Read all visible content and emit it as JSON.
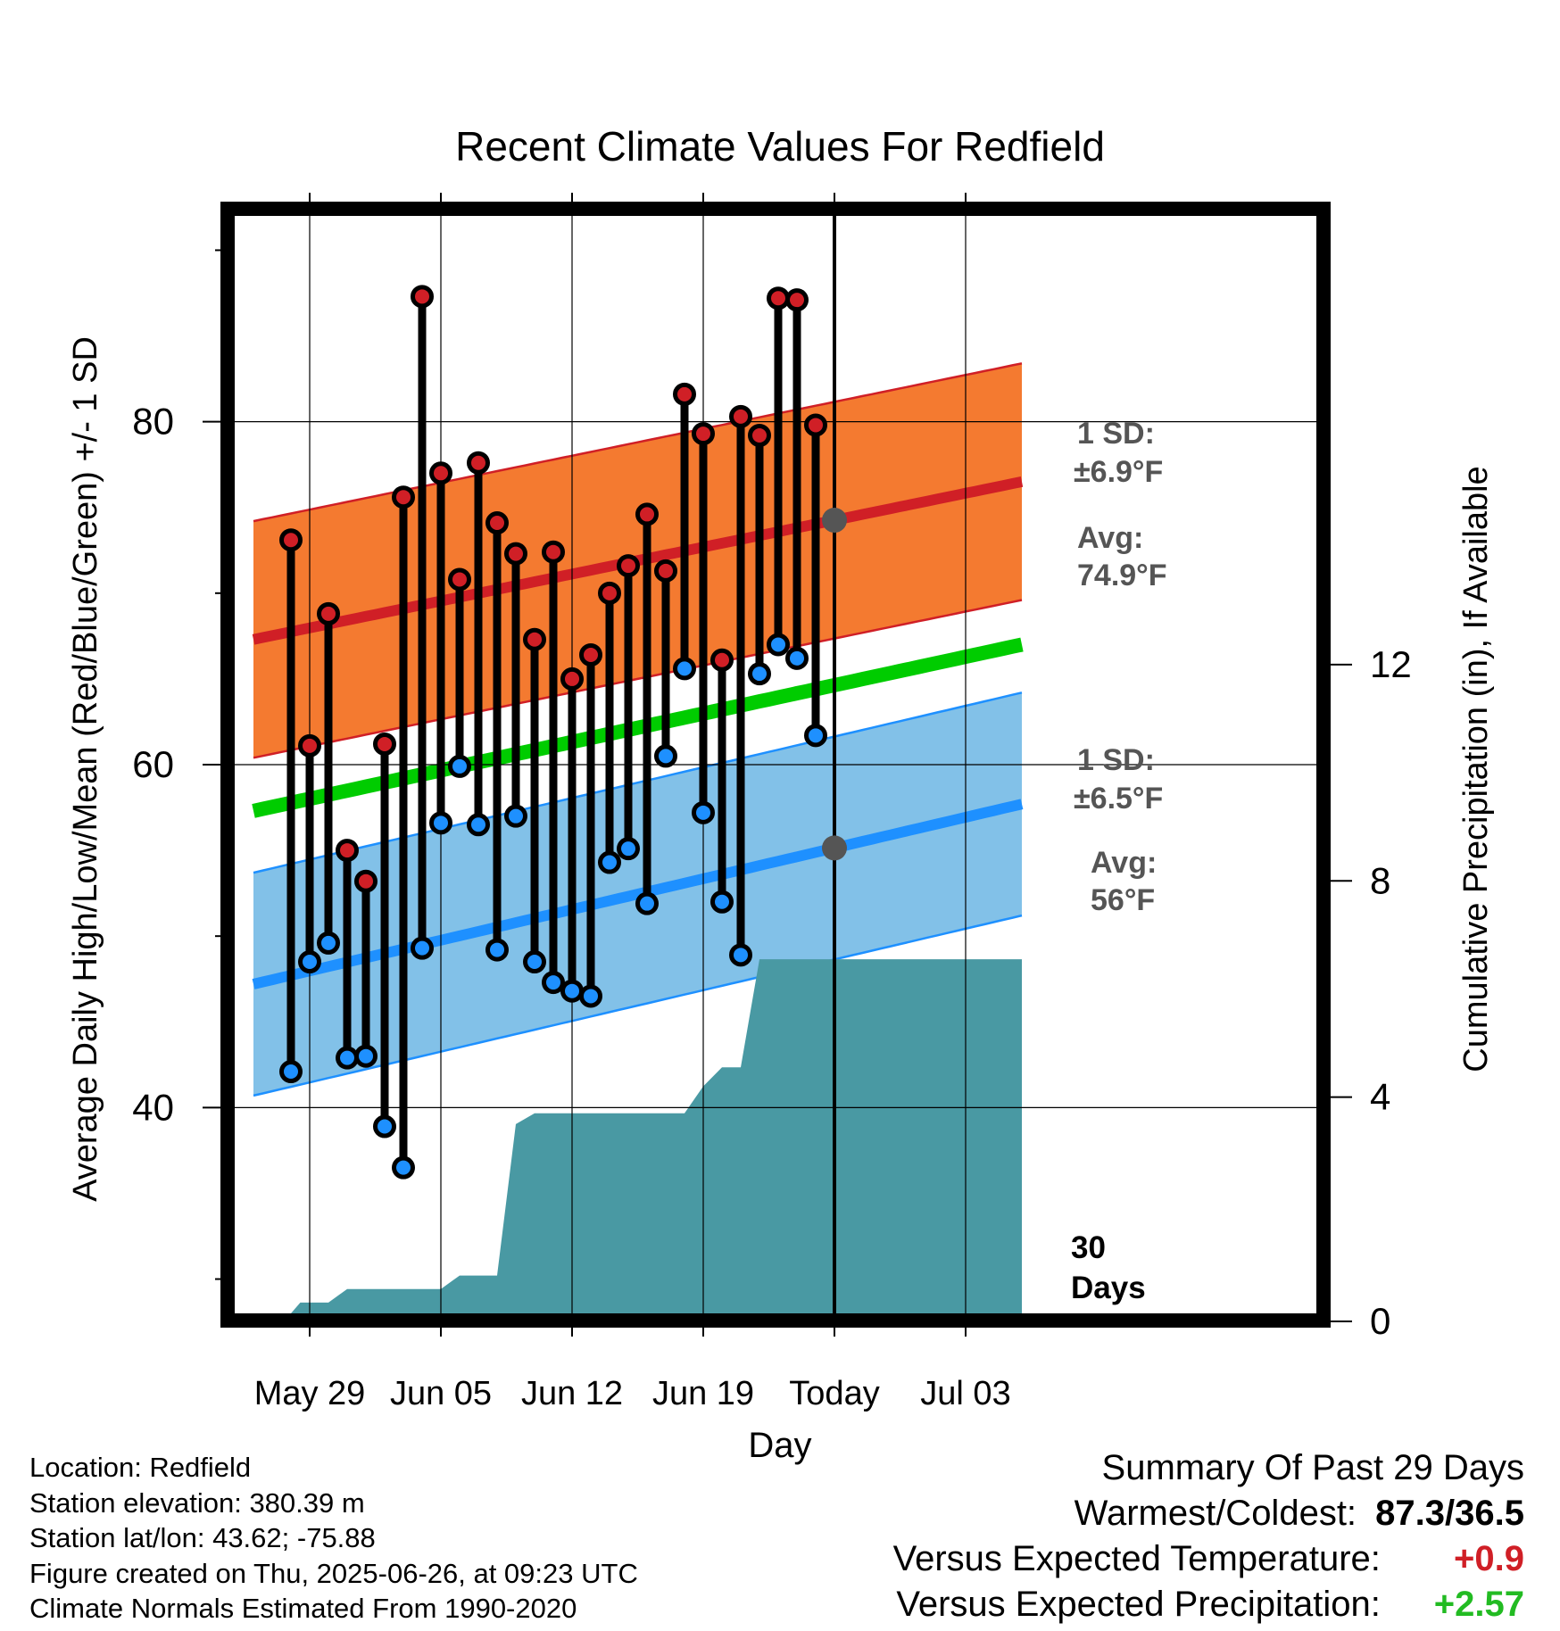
{
  "chart_data": {
    "type": "line",
    "title": "Recent Climate Values For Redfield",
    "xlabel": "Day",
    "ylabel": "Average Daily High/Low/Mean (Red/Blue/Green) +/- 1 SD",
    "y2label": "Cumulative Precipitation (in), If Available",
    "xticks": [
      {
        "day": 4,
        "label": "May 29"
      },
      {
        "day": 11,
        "label": "Jun 05"
      },
      {
        "day": 18,
        "label": "Jun 12"
      },
      {
        "day": 25,
        "label": "Jun 19"
      },
      {
        "day": 32,
        "label": "Today"
      },
      {
        "day": 39,
        "label": "Jul 03"
      }
    ],
    "ylim": [
      28,
      92
    ],
    "yticks": [
      40,
      60,
      80
    ],
    "y2lim": [
      0,
      20.3
    ],
    "y2ticks": [
      0,
      4,
      8,
      12
    ],
    "xlim": [
      1,
      42
    ],
    "today_day": 32,
    "grid": true,
    "normals": {
      "high_mean": {
        "start": 67.3,
        "end": 76.5
      },
      "high_sd": 6.9,
      "low_mean": {
        "start": 47.2,
        "end": 57.7
      },
      "low_sd": 6.5,
      "mean": {
        "start": 57.3,
        "end": 67.0
      }
    },
    "observations": [
      {
        "day": 3,
        "high": 73.1,
        "low": 42.1
      },
      {
        "day": 4,
        "high": 61.1,
        "low": 48.5
      },
      {
        "day": 5,
        "high": 68.8,
        "low": 49.6
      },
      {
        "day": 6,
        "high": 55.0,
        "low": 42.9
      },
      {
        "day": 7,
        "high": 53.2,
        "low": 43.0
      },
      {
        "day": 8,
        "high": 61.2,
        "low": 38.9
      },
      {
        "day": 9,
        "high": 75.6,
        "low": 36.5
      },
      {
        "day": 10,
        "high": 87.3,
        "low": 49.3
      },
      {
        "day": 11,
        "high": 77.0,
        "low": 56.6
      },
      {
        "day": 12,
        "high": 70.8,
        "low": 59.9
      },
      {
        "day": 13,
        "high": 77.6,
        "low": 56.5
      },
      {
        "day": 14,
        "high": 74.1,
        "low": 49.2
      },
      {
        "day": 15,
        "high": 72.3,
        "low": 57.0
      },
      {
        "day": 16,
        "high": 67.3,
        "low": 48.5
      },
      {
        "day": 17,
        "high": 72.4,
        "low": 47.3
      },
      {
        "day": 18,
        "high": 65.0,
        "low": 46.8
      },
      {
        "day": 19,
        "high": 66.4,
        "low": 46.5
      },
      {
        "day": 20,
        "high": 70.0,
        "low": 54.3
      },
      {
        "day": 21,
        "high": 71.6,
        "low": 55.1
      },
      {
        "day": 22,
        "high": 74.6,
        "low": 51.9
      },
      {
        "day": 23,
        "high": 71.3,
        "low": 60.5
      },
      {
        "day": 24,
        "high": 81.6,
        "low": 65.6
      },
      {
        "day": 25,
        "high": 79.3,
        "low": 57.2
      },
      {
        "day": 26,
        "high": 66.1,
        "low": 52.0
      },
      {
        "day": 27,
        "high": 80.3,
        "low": 48.9
      },
      {
        "day": 28,
        "high": 79.2,
        "low": 65.3
      },
      {
        "day": 29,
        "high": 87.2,
        "low": 67.0
      },
      {
        "day": 30,
        "high": 87.1,
        "low": 66.2
      },
      {
        "day": 31,
        "high": 79.8,
        "low": 61.7
      }
    ],
    "precip_cumulative": [
      {
        "day": 3,
        "value": 0.0
      },
      {
        "day": 3.5,
        "value": 0.2
      },
      {
        "day": 4,
        "value": 0.2
      },
      {
        "day": 5,
        "value": 0.2
      },
      {
        "day": 6,
        "value": 0.45
      },
      {
        "day": 11,
        "value": 0.45
      },
      {
        "day": 12,
        "value": 0.7
      },
      {
        "day": 14,
        "value": 0.7
      },
      {
        "day": 15,
        "value": 3.5
      },
      {
        "day": 16,
        "value": 3.7
      },
      {
        "day": 24,
        "value": 3.7
      },
      {
        "day": 25,
        "value": 4.2
      },
      {
        "day": 26,
        "value": 4.55
      },
      {
        "day": 27,
        "value": 4.55
      },
      {
        "day": 28,
        "value": 6.55
      },
      {
        "day": 42,
        "value": 6.55
      }
    ],
    "annotations": {
      "high_sd_label": "1 SD:",
      "high_sd_value": "±6.9°F",
      "high_avg_label": "Avg:",
      "high_avg_value": "74.9°F",
      "low_sd_label": "1 SD:",
      "low_sd_value": "±6.5°F",
      "low_avg_label": "Avg:",
      "low_avg_value": "56°F",
      "window_number": "30",
      "window_unit": "Days"
    },
    "colors": {
      "high_band": "#f47a30",
      "high_line": "#d01f26",
      "low_band": "#82c1e8",
      "low_line": "#1e90ff",
      "mean_line": "#00cc00",
      "precip": "#4999a3",
      "high_dot": "#d01f26",
      "low_dot": "#1e90ff",
      "annotation_text": "#555555"
    }
  },
  "footer": {
    "location": "Location: Redfield",
    "elevation": "Station elevation: 380.39 m",
    "latlon": "Station lat/lon: 43.62; -75.88",
    "created": "Figure created on Thu, 2025-06-26, at 09:23 UTC",
    "normals": "Climate Normals Estimated From 1990-2020"
  },
  "summary": {
    "title": "Summary Of Past 29 Days",
    "warmest_coldest_label": "Warmest/Coldest:",
    "warmest_coldest_value": "87.3/36.5",
    "temp_label": "Versus Expected Temperature:",
    "temp_value": "+0.9",
    "temp_color": "#d01f26",
    "precip_label": "Versus Expected Precipitation:",
    "precip_value": "+2.57",
    "precip_color": "#22bb22"
  }
}
